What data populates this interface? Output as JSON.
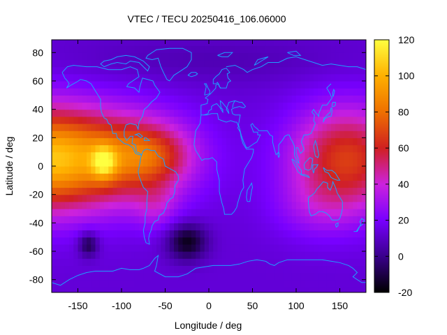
{
  "chart_data": {
    "type": "heatmap",
    "title": "VTEC / TECU 20250416_106.06000",
    "xlabel": "Longitude / deg",
    "ylabel": "Latitude / deg",
    "xlim": [
      -180,
      180
    ],
    "ylim": [
      -89,
      89
    ],
    "x_ticks": [
      -150,
      -100,
      -50,
      0,
      50,
      100,
      150
    ],
    "y_ticks": [
      -80,
      -60,
      -40,
      -20,
      0,
      20,
      40,
      60,
      80
    ],
    "colorbar": {
      "min": -20,
      "max": 120,
      "ticks": [
        -20,
        0,
        20,
        40,
        60,
        80,
        100,
        120
      ],
      "colors": [
        "#000000",
        "#3a008c",
        "#7800ff",
        "#cc22dd",
        "#d02020",
        "#ee7000",
        "#ffb000",
        "#ffff40"
      ]
    },
    "coastline_color": "#1ea0ff",
    "features": [
      {
        "lon": -120,
        "lat": 3,
        "peak": 118,
        "kind": "maximum"
      },
      {
        "lon": 150,
        "lat": 3,
        "peak": 85,
        "kind": "maximum"
      },
      {
        "lon": -25,
        "lat": -52,
        "peak": -18,
        "kind": "minimum"
      },
      {
        "lon": -138,
        "lat": -55,
        "peak": -12,
        "kind": "minimum"
      }
    ]
  }
}
